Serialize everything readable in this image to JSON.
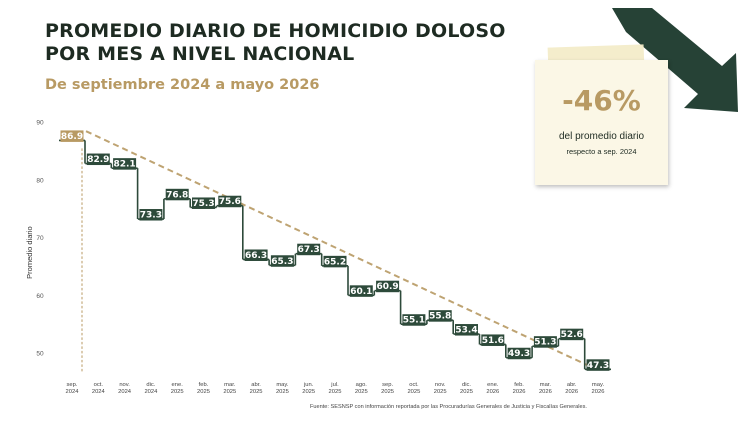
{
  "header": {
    "title_line1": "PROMEDIO DIARIO DE HOMICIDIO DOLOSO",
    "title_line2": "POR MES A NIVEL NACIONAL",
    "subtitle": "De septiembre 2024 a mayo 2026"
  },
  "callout": {
    "value": "-46%",
    "line1": "del promedio diario",
    "line2": "respecto a sep. 2024"
  },
  "source": "Fuente: SESNSP con información reportada por las Procuradurías Generales de Justicia y Fiscalías Generales.",
  "colors": {
    "step_line": "#2d4a3a",
    "label_bg": "#2d4a3a",
    "first_label_bg": "#b89a63",
    "trend": "#b89a63",
    "text_dark": "#1e2b22",
    "arrow": "#264236"
  },
  "chart_data": {
    "type": "line",
    "style": "step",
    "categories": [
      [
        "sep.",
        "2024"
      ],
      [
        "oct.",
        "2024"
      ],
      [
        "nov.",
        "2024"
      ],
      [
        "dic.",
        "2024"
      ],
      [
        "ene.",
        "2025"
      ],
      [
        "feb.",
        "2025"
      ],
      [
        "mar.",
        "2025"
      ],
      [
        "abr.",
        "2025"
      ],
      [
        "may.",
        "2025"
      ],
      [
        "jun.",
        "2025"
      ],
      [
        "jul.",
        "2025"
      ],
      [
        "ago.",
        "2025"
      ],
      [
        "sep.",
        "2025"
      ],
      [
        "oct.",
        "2025"
      ],
      [
        "nov.",
        "2025"
      ],
      [
        "dic.",
        "2025"
      ],
      [
        "ene.",
        "2026"
      ],
      [
        "feb.",
        "2026"
      ],
      [
        "mar.",
        "2026"
      ],
      [
        "abr.",
        "2026"
      ],
      [
        "may.",
        "2026"
      ]
    ],
    "values": [
      86.9,
      82.9,
      82.1,
      73.3,
      76.8,
      75.3,
      75.6,
      66.3,
      65.3,
      67.3,
      65.2,
      60.1,
      60.9,
      55.1,
      55.8,
      53.4,
      51.6,
      49.3,
      51.3,
      52.6,
      47.3
    ],
    "value_labels": [
      "86.9",
      "82.9",
      "82.1",
      "73.3",
      "76.8",
      "75.3",
      "75.6",
      "66.3",
      "65.3",
      "67.3",
      "65.2",
      "60.1",
      "60.9",
      "55.1",
      "55.8",
      "53.4",
      "51.6",
      "49.3",
      "51.3",
      "52.6",
      "47.3"
    ],
    "ylabel": "Promedio diario",
    "yticks": [
      50,
      60,
      70,
      80,
      90
    ],
    "ylim": [
      46,
      90
    ],
    "trend_line": {
      "from": 88.5,
      "to": 47.3
    },
    "grid": false,
    "legend": "none"
  }
}
